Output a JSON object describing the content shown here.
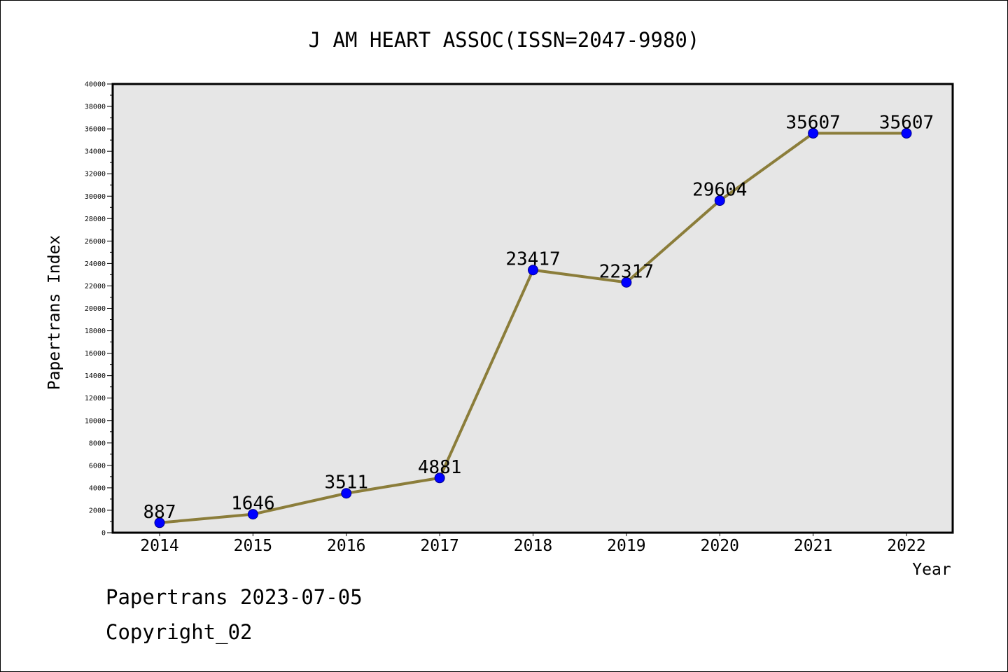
{
  "chart_data": {
    "type": "line",
    "title": "J AM HEART ASSOC(ISSN=2047-9980)",
    "xlabel": "Year",
    "ylabel": "Papertrans Index",
    "categories": [
      "2014",
      "2015",
      "2016",
      "2017",
      "2018",
      "2019",
      "2020",
      "2021",
      "2022"
    ],
    "series": [
      {
        "values": [
          887,
          1646,
          3511,
          4881,
          23417,
          22317,
          29604,
          35607,
          35607
        ]
      }
    ],
    "data_labels": [
      "887",
      "1646",
      "3511",
      "4881",
      "23417",
      "22317",
      "29604",
      "35607",
      "35607"
    ],
    "ylim": [
      0,
      40000
    ],
    "yticks": [
      0,
      2000,
      4000,
      6000,
      8000,
      10000,
      12000,
      14000,
      16000,
      18000,
      20000,
      22000,
      24000,
      26000,
      28000,
      30000,
      32000,
      34000,
      36000,
      38000,
      40000
    ],
    "grid": false,
    "legend": "none",
    "colors": {
      "line": "#8b7d3a",
      "marker": "#0000ff",
      "plot_background": "#e6e6e6",
      "frame": "#000000"
    }
  },
  "footer": {
    "line1": "Papertrans 2023-07-05",
    "line2": "Copyright_02"
  }
}
